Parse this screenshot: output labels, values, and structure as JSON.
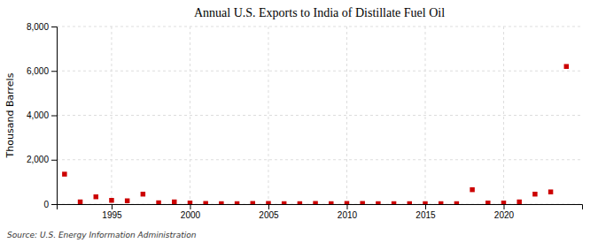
{
  "chart_data": {
    "type": "scatter",
    "title": "Annual U.S. Exports to India of Distillate Fuel Oil",
    "y_label": "Thousand Barrels",
    "annotations": [
      "Source: U.S. Energy Information Administration"
    ],
    "x": [
      1992,
      1993,
      1994,
      1995,
      1996,
      1997,
      1998,
      1999,
      2000,
      2001,
      2002,
      2003,
      2004,
      2005,
      2006,
      2007,
      2008,
      2009,
      2010,
      2011,
      2012,
      2013,
      2014,
      2015,
      2016,
      2017,
      2018,
      2019,
      2020,
      2021,
      2022,
      2023,
      2024
    ],
    "values": [
      1350,
      100,
      330,
      170,
      150,
      450,
      60,
      100,
      50,
      30,
      20,
      20,
      30,
      30,
      20,
      20,
      30,
      20,
      30,
      30,
      20,
      20,
      20,
      20,
      20,
      20,
      650,
      50,
      50,
      100,
      450,
      550,
      6200
    ],
    "color": "#cc0000",
    "marker": "square",
    "xlim": [
      1991.5,
      2025
    ],
    "ylim": [
      0,
      8000
    ],
    "xticks": [
      1995,
      2000,
      2005,
      2010,
      2015,
      2020
    ],
    "yticks": [
      0,
      {
        "value": 2000,
        "label": "2,000"
      },
      {
        "value": 4000,
        "label": "4,000"
      },
      {
        "value": 6000,
        "label": "6,000"
      },
      {
        "value": 8000,
        "label": "8,000"
      }
    ],
    "grid": true
  }
}
